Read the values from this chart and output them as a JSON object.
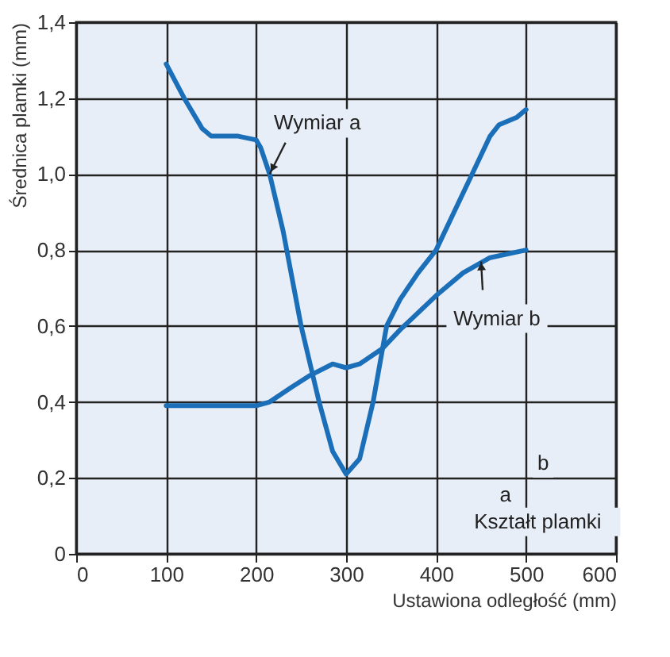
{
  "chart_data": {
    "type": "line",
    "xlabel": "Ustawiona odległość (mm)",
    "ylabel": "Średnica plamki (mm)",
    "xlim": [
      0,
      600
    ],
    "xticks": [
      0,
      100,
      200,
      300,
      400,
      500,
      600
    ],
    "ylim": [
      0,
      1.4
    ],
    "yticks": [
      {
        "value": 0,
        "label": "0"
      },
      {
        "value": 0.2,
        "label": "0,2"
      },
      {
        "value": 0.4,
        "label": "0,4"
      },
      {
        "value": 0.6,
        "label": "0,6"
      },
      {
        "value": 0.8,
        "label": "0,8"
      },
      {
        "value": 1.0,
        "label": "1,0"
      },
      {
        "value": 1.2,
        "label": "1,2"
      },
      {
        "value": 1.4,
        "label": "1,4"
      }
    ],
    "grid": true,
    "marker": "none",
    "line_style": "solid",
    "series": [
      {
        "color": "#1b6fb8",
        "x": [
          100,
          120,
          140,
          150,
          180,
          200,
          205,
          215,
          230,
          250,
          270,
          285,
          300,
          315,
          330,
          345,
          360,
          380,
          400,
          420,
          440,
          460,
          470,
          490,
          500
        ],
        "values": [
          1.29,
          1.2,
          1.12,
          1.1,
          1.1,
          1.09,
          1.07,
          1.0,
          0.85,
          0.6,
          0.4,
          0.27,
          0.21,
          0.25,
          0.4,
          0.6,
          0.67,
          0.74,
          0.8,
          0.9,
          1.0,
          1.1,
          1.13,
          1.15,
          1.17
        ]
      },
      {
        "color": "#1b6fb8",
        "x": [
          100,
          200,
          215,
          240,
          260,
          285,
          300,
          315,
          340,
          360,
          400,
          430,
          460,
          500
        ],
        "values": [
          0.39,
          0.39,
          0.4,
          0.44,
          0.47,
          0.5,
          0.49,
          0.5,
          0.54,
          0.59,
          0.68,
          0.74,
          0.78,
          0.8
        ]
      }
    ],
    "annotations": [
      {
        "text": "Wymiar a",
        "x": 215,
        "y": 1.0
      },
      {
        "text": "Wymiar b",
        "x": 450,
        "y": 0.77
      },
      "b",
      "a",
      "Kształt plamki"
    ]
  }
}
